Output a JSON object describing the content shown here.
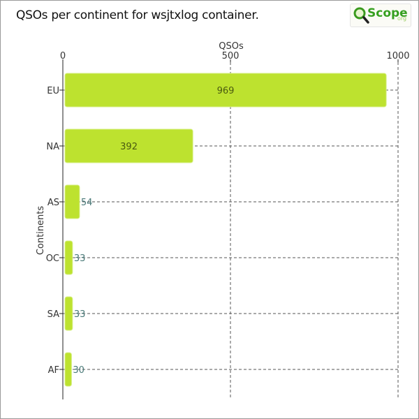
{
  "chart_data": {
    "type": "bar",
    "orientation": "horizontal",
    "title": "QSOs per continent for wsjtxlog container.",
    "xlabel": "QSOs",
    "ylabel": "Continents",
    "x_axis_position": "top",
    "xlim": [
      0,
      1000
    ],
    "xticks": [
      0,
      500,
      1000
    ],
    "grid": true,
    "categories": [
      "EU",
      "NA",
      "AS",
      "OC",
      "SA",
      "AF"
    ],
    "values": [
      969,
      392,
      54,
      33,
      33,
      30
    ],
    "bar_color": "#bde22f"
  },
  "logo": {
    "text": "Scope",
    "sub": "org",
    "mark": "Q"
  }
}
